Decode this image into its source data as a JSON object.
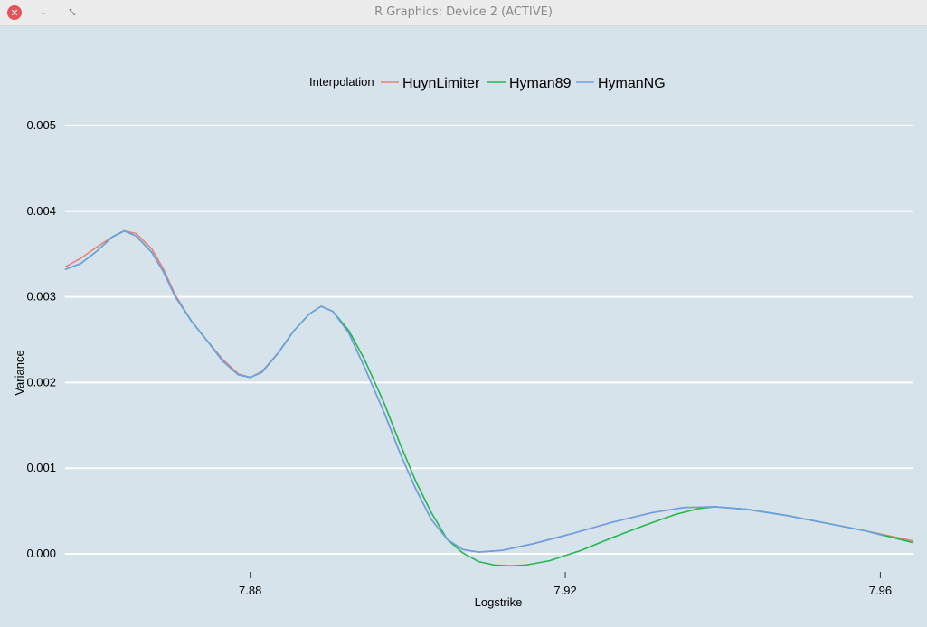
{
  "window": {
    "title": "R Graphics: Device 2 (ACTIVE)",
    "close_glyph": "✕",
    "min_glyph": "–",
    "max_glyph": "⤡"
  },
  "chart_data": {
    "type": "line",
    "title": "",
    "xlabel": "Logstrike",
    "ylabel": "Variance",
    "xlim": [
      7.8565,
      7.9642
    ],
    "ylim": [
      -0.0002,
      0.0054
    ],
    "x_ticks": [
      7.88,
      7.92,
      7.96
    ],
    "x_tick_labels": [
      "7.88",
      "7.92",
      "7.96"
    ],
    "y_ticks": [
      0.0,
      0.001,
      0.002,
      0.003,
      0.004,
      0.005
    ],
    "y_tick_labels": [
      "0.000",
      "0.001",
      "0.002",
      "0.003",
      "0.004",
      "0.005"
    ],
    "grid": true,
    "legend": {
      "title": "Interpolation",
      "placement": "top"
    },
    "background_color": "#d6e3ea",
    "series": [
      {
        "name": "HuynLimiter",
        "color": "#ee7f78",
        "points": [
          [
            7.8565,
            0.00335
          ],
          [
            7.8585,
            0.00345
          ],
          [
            7.8605,
            0.00358
          ],
          [
            7.8625,
            0.0037
          ],
          [
            7.864,
            0.00377
          ],
          [
            7.8655,
            0.00374
          ],
          [
            7.8675,
            0.00356
          ],
          [
            7.869,
            0.00332
          ],
          [
            7.8705,
            0.00302
          ],
          [
            7.8725,
            0.00272
          ],
          [
            7.8745,
            0.00249
          ],
          [
            7.8765,
            0.00227
          ],
          [
            7.8785,
            0.0021
          ],
          [
            7.88,
            0.00206
          ],
          [
            7.8815,
            0.00213
          ],
          [
            7.8835,
            0.00234
          ],
          [
            7.8855,
            0.0026
          ],
          [
            7.8875,
            0.0028
          ],
          [
            7.889,
            0.00289
          ],
          [
            7.8905,
            0.00283
          ],
          [
            7.8925,
            0.00258
          ],
          [
            7.8945,
            0.00218
          ],
          [
            7.897,
            0.00165
          ],
          [
            7.899,
            0.00118
          ],
          [
            7.901,
            0.00076
          ],
          [
            7.903,
            0.0004
          ],
          [
            7.905,
            0.00017
          ],
          [
            7.907,
            5e-05
          ],
          [
            7.909,
            2e-05
          ],
          [
            7.912,
            4e-05
          ],
          [
            7.916,
            0.00012
          ],
          [
            7.921,
            0.00024
          ],
          [
            7.926,
            0.00037
          ],
          [
            7.931,
            0.00048
          ],
          [
            7.935,
            0.00054
          ],
          [
            7.939,
            0.00055
          ],
          [
            7.943,
            0.00052
          ],
          [
            7.948,
            0.00045
          ],
          [
            7.953,
            0.00036
          ],
          [
            7.958,
            0.00027
          ],
          [
            7.9642,
            0.00015
          ]
        ]
      },
      {
        "name": "Hyman89",
        "color": "#20b84c",
        "points": [
          [
            7.8565,
            0.00332
          ],
          [
            7.8585,
            0.00339
          ],
          [
            7.8605,
            0.00353
          ],
          [
            7.8625,
            0.0037
          ],
          [
            7.864,
            0.00377
          ],
          [
            7.8655,
            0.00371
          ],
          [
            7.8675,
            0.00352
          ],
          [
            7.869,
            0.00329
          ],
          [
            7.8705,
            0.003
          ],
          [
            7.8725,
            0.00272
          ],
          [
            7.8745,
            0.00249
          ],
          [
            7.8765,
            0.00225
          ],
          [
            7.8785,
            0.00209
          ],
          [
            7.88,
            0.00206
          ],
          [
            7.8815,
            0.00212
          ],
          [
            7.8835,
            0.00234
          ],
          [
            7.8855,
            0.0026
          ],
          [
            7.8875,
            0.0028
          ],
          [
            7.889,
            0.00289
          ],
          [
            7.8905,
            0.00283
          ],
          [
            7.8925,
            0.00261
          ],
          [
            7.8945,
            0.00227
          ],
          [
            7.897,
            0.00176
          ],
          [
            7.899,
            0.00129
          ],
          [
            7.901,
            0.00085
          ],
          [
            7.903,
            0.00048
          ],
          [
            7.905,
            0.00017
          ],
          [
            7.907,
            1e-05
          ],
          [
            7.909,
            -9e-05
          ],
          [
            7.911,
            -0.00013
          ],
          [
            7.913,
            -0.00014
          ],
          [
            7.915,
            -0.00013
          ],
          [
            7.918,
            -8e-05
          ],
          [
            7.922,
            4e-05
          ],
          [
            7.926,
            0.00019
          ],
          [
            7.93,
            0.00033
          ],
          [
            7.934,
            0.00046
          ],
          [
            7.937,
            0.00053
          ],
          [
            7.939,
            0.00055
          ],
          [
            7.943,
            0.00052
          ],
          [
            7.948,
            0.00045
          ],
          [
            7.953,
            0.00036
          ],
          [
            7.958,
            0.00027
          ],
          [
            7.9642,
            0.00013
          ]
        ]
      },
      {
        "name": "HymanNG",
        "color": "#6aa0e8",
        "points": [
          [
            7.8565,
            0.00332
          ],
          [
            7.8585,
            0.00339
          ],
          [
            7.8605,
            0.00353
          ],
          [
            7.8625,
            0.0037
          ],
          [
            7.864,
            0.00377
          ],
          [
            7.8655,
            0.00371
          ],
          [
            7.8675,
            0.00352
          ],
          [
            7.869,
            0.00329
          ],
          [
            7.8705,
            0.003
          ],
          [
            7.8725,
            0.00272
          ],
          [
            7.8745,
            0.00249
          ],
          [
            7.8765,
            0.00225
          ],
          [
            7.8785,
            0.00209
          ],
          [
            7.88,
            0.00206
          ],
          [
            7.8815,
            0.00212
          ],
          [
            7.8835,
            0.00234
          ],
          [
            7.8855,
            0.0026
          ],
          [
            7.8875,
            0.0028
          ],
          [
            7.889,
            0.00289
          ],
          [
            7.8905,
            0.00283
          ],
          [
            7.8925,
            0.00258
          ],
          [
            7.8945,
            0.00218
          ],
          [
            7.897,
            0.00165
          ],
          [
            7.899,
            0.00118
          ],
          [
            7.901,
            0.00076
          ],
          [
            7.903,
            0.0004
          ],
          [
            7.905,
            0.00017
          ],
          [
            7.907,
            5e-05
          ],
          [
            7.909,
            2e-05
          ],
          [
            7.912,
            4e-05
          ],
          [
            7.916,
            0.00012
          ],
          [
            7.921,
            0.00024
          ],
          [
            7.926,
            0.00037
          ],
          [
            7.931,
            0.00048
          ],
          [
            7.935,
            0.00054
          ],
          [
            7.939,
            0.00055
          ],
          [
            7.943,
            0.00052
          ],
          [
            7.948,
            0.00045
          ],
          [
            7.953,
            0.00036
          ],
          [
            7.958,
            0.00027
          ],
          [
            7.9605,
            0.00021
          ]
        ]
      }
    ]
  }
}
